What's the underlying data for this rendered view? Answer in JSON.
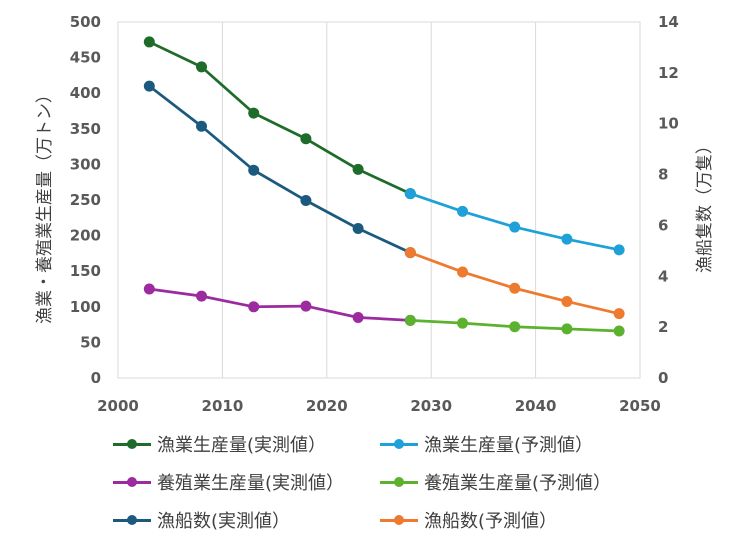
{
  "chart_data": {
    "type": "line",
    "title": "",
    "x_axis": {
      "min": 2000,
      "max": 2050,
      "ticks": [
        2000,
        2010,
        2020,
        2030,
        2040,
        2050
      ]
    },
    "y_left": {
      "label": "漁業・養殖業生産量（万トン）",
      "min": 0,
      "max": 500,
      "ticks": [
        0,
        50,
        100,
        150,
        200,
        250,
        300,
        350,
        400,
        450,
        500
      ]
    },
    "y_right": {
      "label": "漁船隻数（万隻）",
      "min": 0,
      "max": 14,
      "ticks": [
        0,
        2,
        4,
        6,
        8,
        10,
        12,
        14
      ]
    },
    "grid": "vertical",
    "series": [
      {
        "name": "漁業生産量(実測値）",
        "color": "#1e6b2a",
        "axis": "left",
        "x": [
          2003,
          2008,
          2013,
          2018,
          2023,
          2028
        ],
        "y": [
          472,
          437,
          372,
          336,
          293,
          259
        ]
      },
      {
        "name": "漁業生産量(予測値）",
        "color": "#1ea0d8",
        "axis": "left",
        "x": [
          2028,
          2033,
          2038,
          2043,
          2048
        ],
        "y": [
          259,
          234,
          212,
          195,
          180
        ]
      },
      {
        "name": "養殖業生産量(実測値）",
        "color": "#9b2b9e",
        "axis": "left",
        "x": [
          2003,
          2008,
          2013,
          2018,
          2023,
          2028
        ],
        "y": [
          125,
          115,
          100,
          101,
          85,
          81
        ]
      },
      {
        "name": "養殖業生産量(予測値）",
        "color": "#5cb12e",
        "axis": "left",
        "x": [
          2028,
          2033,
          2038,
          2043,
          2048
        ],
        "y": [
          81,
          77,
          72,
          69,
          66
        ]
      },
      {
        "name": "漁船数(実測値）",
        "color": "#1b5a7e",
        "axis": "right",
        "x": [
          2003,
          2008,
          2013,
          2018,
          2023,
          2028
        ],
        "y": [
          11.48,
          9.9,
          8.17,
          6.98,
          5.88,
          4.93
        ]
      },
      {
        "name": "漁船数(予測値）",
        "color": "#ee7a2f",
        "axis": "right",
        "x": [
          2028,
          2033,
          2038,
          2043,
          2048
        ],
        "y": [
          4.93,
          4.17,
          3.53,
          3.01,
          2.53
        ]
      }
    ],
    "legend": {
      "position": "bottom",
      "order": [
        0,
        1,
        2,
        3,
        4,
        5
      ]
    }
  }
}
